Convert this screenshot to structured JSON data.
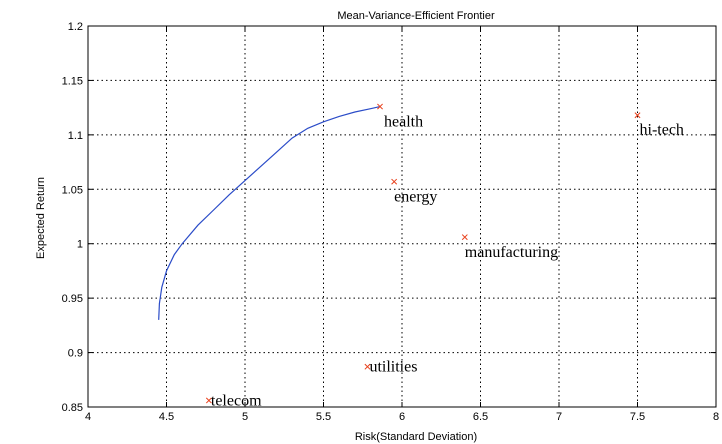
{
  "chart_data": {
    "type": "line",
    "title": "Mean-Variance-Efficient Frontier",
    "xlabel": "Risk(Standard Deviation)",
    "ylabel": "Expected Return",
    "xlim": [
      4,
      8
    ],
    "ylim": [
      0.85,
      1.2
    ],
    "x_ticks": [
      4,
      4.5,
      5,
      5.5,
      6,
      6.5,
      7,
      7.5,
      8
    ],
    "y_ticks": [
      0.85,
      0.9,
      0.95,
      1,
      1.05,
      1.1,
      1.15,
      1.2
    ],
    "x_tick_labels": [
      "4",
      "4.5",
      "5",
      "5.5",
      "6",
      "6.5",
      "7",
      "7.5",
      "8"
    ],
    "y_tick_labels": [
      "0.85",
      "0.9",
      "0.95",
      "1",
      "1.05",
      "1.1",
      "1.15",
      "1.2"
    ],
    "grid": true,
    "frontier": {
      "color": "#2b4cc8",
      "x": [
        4.45,
        4.455,
        4.47,
        4.5,
        4.55,
        4.6,
        4.7,
        4.8,
        4.9,
        5.0,
        5.1,
        5.2,
        5.3,
        5.4,
        5.5,
        5.6,
        5.7,
        5.8,
        5.86
      ],
      "y": [
        0.93,
        0.945,
        0.96,
        0.975,
        0.99,
        1.0,
        1.017,
        1.031,
        1.045,
        1.058,
        1.071,
        1.084,
        1.097,
        1.106,
        1.112,
        1.117,
        1.121,
        1.124,
        1.126
      ]
    },
    "assets": {
      "color": "#e8401c",
      "points": [
        {
          "label": "health",
          "x": 5.86,
          "y": 1.126
        },
        {
          "label": "hi-tech",
          "x": 7.5,
          "y": 1.118
        },
        {
          "label": "energy",
          "x": 5.95,
          "y": 1.057
        },
        {
          "label": "manufacturing",
          "x": 6.4,
          "y": 1.006
        },
        {
          "label": "utilities",
          "x": 5.78,
          "y": 0.887
        },
        {
          "label": "telecom",
          "x": 4.77,
          "y": 0.856
        }
      ]
    }
  }
}
